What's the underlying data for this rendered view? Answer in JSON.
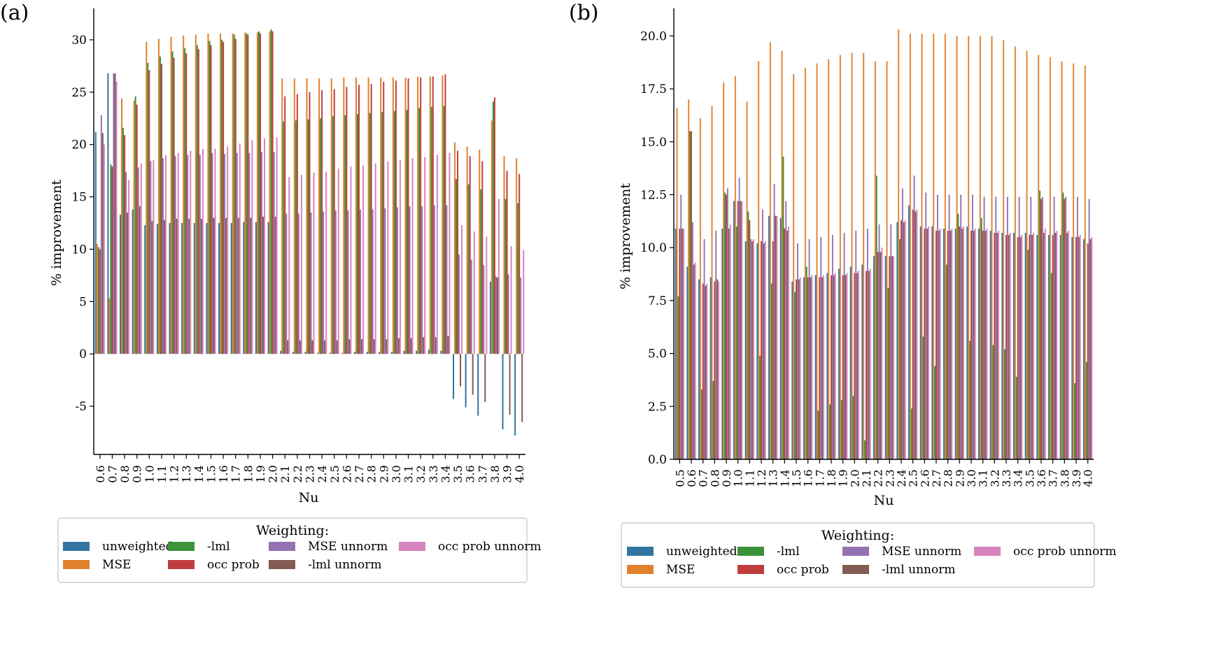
{
  "panels": [
    {
      "label": "(a)",
      "chart_data": {
        "type": "bar",
        "xlabel": "Nu",
        "ylabel": "% improvement",
        "ylim": [
          -9.6,
          33
        ],
        "yticks": [
          -5,
          0,
          5,
          10,
          15,
          20,
          25,
          30
        ],
        "categories": [
          "0.6",
          "0.7",
          "0.8",
          "0.9",
          "1.0",
          "1.1",
          "1.2",
          "1.3",
          "1.4",
          "1.5",
          "1.6",
          "1.7",
          "1.8",
          "1.9",
          "2.0",
          "2.1",
          "2.2",
          "2.3",
          "2.4",
          "2.5",
          "2.6",
          "2.7",
          "2.8",
          "2.9",
          "3.0",
          "3.1",
          "3.2",
          "3.3",
          "3.4",
          "3.5",
          "3.6",
          "3.7",
          "3.8",
          "3.9",
          "4.0"
        ],
        "series": [
          {
            "name": "unweighted",
            "values": [
              21.2,
              26.8,
              13.3,
              13.8,
              12.3,
              12.4,
              12.5,
              12.5,
              12.5,
              12.5,
              12.5,
              12.5,
              12.6,
              12.6,
              12.6,
              0.3,
              0.2,
              0.2,
              0.1,
              0.1,
              0.1,
              0.2,
              0.2,
              0.2,
              0.2,
              0.3,
              0.3,
              0.4,
              0.3,
              -4.3,
              -5.1,
              -5.9,
              6.9,
              -7.2,
              -7.8
            ]
          },
          {
            "name": "MSE",
            "values": [
              10.5,
              5.3,
              24.4,
              24.2,
              29.8,
              30.1,
              30.3,
              30.4,
              30.5,
              30.6,
              30.6,
              30.6,
              30.7,
              30.7,
              30.8,
              26.3,
              26.3,
              26.3,
              26.3,
              26.3,
              26.4,
              26.4,
              26.4,
              26.4,
              26.4,
              26.4,
              26.5,
              26.5,
              26.6,
              20.2,
              19.8,
              19.5,
              22.3,
              18.9,
              18.7
            ]
          },
          {
            "name": "-lml",
            "values": [
              10.2,
              18.1,
              21.6,
              24.6,
              27.8,
              28.4,
              28.9,
              29.2,
              29.5,
              29.9,
              30.0,
              30.5,
              30.6,
              30.8,
              31.0,
              22.2,
              22.3,
              22.4,
              22.5,
              22.7,
              22.8,
              22.9,
              23.0,
              23.1,
              23.2,
              23.3,
              23.5,
              23.6,
              23.7,
              16.7,
              16.2,
              15.7,
              24.1,
              14.8,
              14.4
            ]
          },
          {
            "name": "occ prob",
            "values": [
              10.0,
              17.9,
              20.9,
              23.8,
              27.1,
              27.7,
              28.3,
              28.7,
              29.1,
              29.5,
              29.8,
              30.1,
              30.5,
              30.6,
              30.8,
              24.6,
              24.8,
              25.0,
              25.2,
              25.3,
              25.5,
              25.7,
              25.8,
              26.0,
              26.1,
              26.3,
              26.4,
              26.5,
              26.7,
              19.4,
              18.9,
              18.4,
              24.5,
              17.5,
              17.2
            ]
          },
          {
            "name": "MSE unnorm",
            "values": [
              22.8,
              26.8,
              17.4,
              17.8,
              18.4,
              18.7,
              18.9,
              19.0,
              19.0,
              19.2,
              19.1,
              19.2,
              19.2,
              19.3,
              19.3,
              13.4,
              13.4,
              13.5,
              13.6,
              13.7,
              13.7,
              13.8,
              13.8,
              13.9,
              14.0,
              14.1,
              14.1,
              14.2,
              14.2,
              9.5,
              9.0,
              8.5,
              7.4,
              7.6,
              7.3
            ]
          },
          {
            "name": "-lml unnorm",
            "values": [
              21.1,
              26.8,
              13.5,
              14.1,
              12.7,
              12.8,
              12.9,
              12.9,
              12.9,
              13.0,
              13.0,
              13.0,
              13.0,
              13.1,
              13.1,
              1.3,
              1.3,
              1.3,
              1.3,
              1.3,
              1.4,
              1.4,
              1.4,
              1.4,
              1.5,
              1.5,
              1.6,
              1.6,
              1.7,
              -3.1,
              -3.9,
              -4.6,
              7.3,
              -5.8,
              -6.5
            ]
          },
          {
            "name": "occ prob unnorm",
            "values": [
              20.0,
              26.0,
              16.6,
              18.2,
              18.5,
              19.0,
              19.2,
              19.4,
              19.6,
              19.6,
              19.8,
              20.1,
              20.4,
              20.6,
              20.7,
              16.9,
              17.1,
              17.3,
              17.4,
              17.7,
              17.9,
              18.0,
              18.2,
              18.4,
              18.5,
              18.7,
              18.8,
              19.0,
              19.2,
              12.3,
              11.7,
              11.2,
              14.8,
              10.3,
              9.9
            ]
          }
        ]
      }
    },
    {
      "label": "(b)",
      "chart_data": {
        "type": "bar",
        "xlabel": "Nu",
        "ylabel": "% improvement",
        "ylim": [
          0,
          21.3
        ],
        "yticks": [
          0.0,
          2.5,
          5.0,
          7.5,
          10.0,
          12.5,
          15.0,
          17.5,
          20.0
        ],
        "categories": [
          "0.5",
          "0.6",
          "0.7",
          "0.8",
          "0.9",
          "1.0",
          "1.1",
          "1.2",
          "1.3",
          "1.4",
          "1.5",
          "1.6",
          "1.7",
          "1.8",
          "1.9",
          "2.0",
          "2.1",
          "2.2",
          "2.3",
          "2.4",
          "2.5",
          "2.6",
          "2.7",
          "2.8",
          "2.9",
          "3.0",
          "3.1",
          "3.2",
          "3.3",
          "3.4",
          "3.5",
          "3.6",
          "3.7",
          "3.8",
          "3.9",
          "4.0"
        ],
        "series": [
          {
            "name": "unweighted",
            "values": [
              10.9,
              9.1,
              8.5,
              8.6,
              10.9,
              12.2,
              10.3,
              10.2,
              11.5,
              11.4,
              8.4,
              8.6,
              8.7,
              8.8,
              9.0,
              9.1,
              9.2,
              9.6,
              9.6,
              11.2,
              12.0,
              11.0,
              11.0,
              10.9,
              10.9,
              11.0,
              10.9,
              10.8,
              10.7,
              10.7,
              10.7,
              10.6,
              10.6,
              10.6,
              10.5,
              10.4
            ]
          },
          {
            "name": "MSE",
            "values": [
              16.6,
              17.0,
              16.1,
              16.7,
              17.8,
              18.1,
              16.9,
              18.8,
              19.7,
              19.3,
              18.2,
              18.5,
              18.7,
              18.9,
              19.1,
              19.2,
              19.2,
              18.8,
              18.8,
              20.3,
              20.1,
              20.1,
              20.1,
              20.1,
              20.0,
              20.0,
              20.0,
              20.0,
              19.8,
              19.5,
              19.3,
              19.1,
              19.0,
              18.8,
              18.7,
              18.6
            ]
          },
          {
            "name": "-lml",
            "values": [
              7.7,
              15.5,
              3.3,
              3.7,
              12.6,
              11.0,
              11.7,
              4.9,
              8.3,
              14.3,
              7.9,
              9.1,
              2.3,
              2.6,
              2.8,
              3.0,
              0.9,
              13.4,
              8.1,
              10.4,
              2.4,
              5.8,
              4.4,
              9.2,
              11.6,
              5.6,
              11.4,
              5.4,
              5.2,
              3.9,
              9.9,
              12.7,
              8.8,
              12.6,
              3.6,
              4.6
            ]
          },
          {
            "name": "occ prob",
            "values": [
              10.9,
              15.5,
              8.3,
              8.4,
              12.5,
              12.2,
              11.3,
              10.3,
              10.3,
              10.9,
              8.5,
              8.6,
              8.6,
              8.7,
              8.7,
              8.8,
              8.9,
              9.8,
              9.6,
              11.3,
              11.8,
              10.9,
              10.8,
              10.8,
              11.0,
              10.8,
              10.8,
              10.7,
              10.6,
              10.5,
              10.6,
              12.3,
              10.6,
              12.3,
              10.5,
              10.2
            ]
          },
          {
            "name": "MSE unnorm",
            "values": [
              12.5,
              11.2,
              10.4,
              10.8,
              12.8,
              13.3,
              10.4,
              11.8,
              13.0,
              12.2,
              10.2,
              10.4,
              10.5,
              10.6,
              10.7,
              10.8,
              10.9,
              11.1,
              11.1,
              12.8,
              13.4,
              12.6,
              12.5,
              12.5,
              12.5,
              12.5,
              12.4,
              12.4,
              12.4,
              12.4,
              12.4,
              12.4,
              12.4,
              12.4,
              12.4,
              12.3
            ]
          },
          {
            "name": "-lml unnorm",
            "values": [
              10.9,
              9.2,
              8.2,
              8.5,
              10.9,
              12.2,
              10.3,
              10.2,
              11.5,
              10.8,
              8.5,
              8.6,
              8.6,
              8.7,
              8.7,
              8.8,
              8.9,
              9.8,
              9.6,
              11.2,
              11.7,
              10.9,
              10.8,
              10.8,
              10.9,
              10.8,
              10.8,
              10.7,
              10.6,
              10.5,
              10.6,
              10.7,
              10.7,
              10.7,
              10.5,
              10.4
            ]
          },
          {
            "name": "occ prob unnorm",
            "values": [
              10.9,
              9.3,
              8.3,
              8.4,
              11.1,
              12.2,
              10.4,
              10.3,
              11.5,
              11.0,
              8.6,
              8.7,
              8.7,
              8.8,
              8.8,
              8.9,
              9.0,
              10.0,
              9.6,
              11.3,
              11.8,
              11.0,
              10.9,
              10.9,
              11.0,
              10.9,
              10.9,
              10.8,
              10.7,
              10.6,
              10.7,
              10.9,
              10.8,
              10.8,
              10.6,
              10.5
            ]
          }
        ]
      }
    }
  ],
  "legend": {
    "title": "Weighting:",
    "entries": [
      "unweighted",
      "MSE",
      "-lml",
      "occ prob",
      "MSE unnorm",
      "-lml unnorm",
      "occ prob unnorm"
    ],
    "colors": [
      "#3274a1",
      "#e1812c",
      "#3a923a",
      "#c03d3e",
      "#9372b2",
      "#845b53",
      "#d684bd"
    ]
  }
}
